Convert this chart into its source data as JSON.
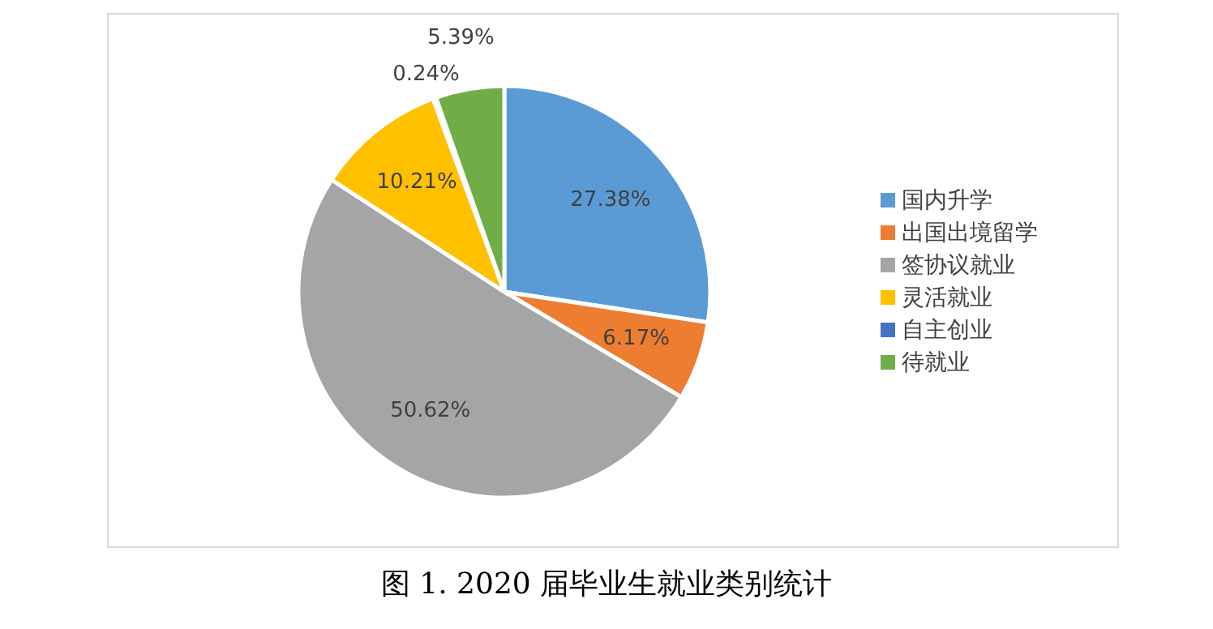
{
  "chart_data": {
    "type": "pie",
    "title": "图 1. 2020 届毕业生就业类别统计",
    "categories": [
      "国内升学",
      "出国出境留学",
      "签协议就业",
      "灵活就业",
      "自主创业",
      "待就业"
    ],
    "values": [
      27.38,
      6.17,
      50.62,
      10.21,
      0.24,
      5.39
    ],
    "colors": [
      "#5b9bd5",
      "#ed7d31",
      "#a5a5a5",
      "#ffc000",
      "#4472c4",
      "#70ad47"
    ],
    "value_labels": [
      "27.38%",
      "6.17%",
      "50.62%",
      "10.21%",
      "0.24%",
      "5.39%"
    ],
    "legend": "right"
  }
}
